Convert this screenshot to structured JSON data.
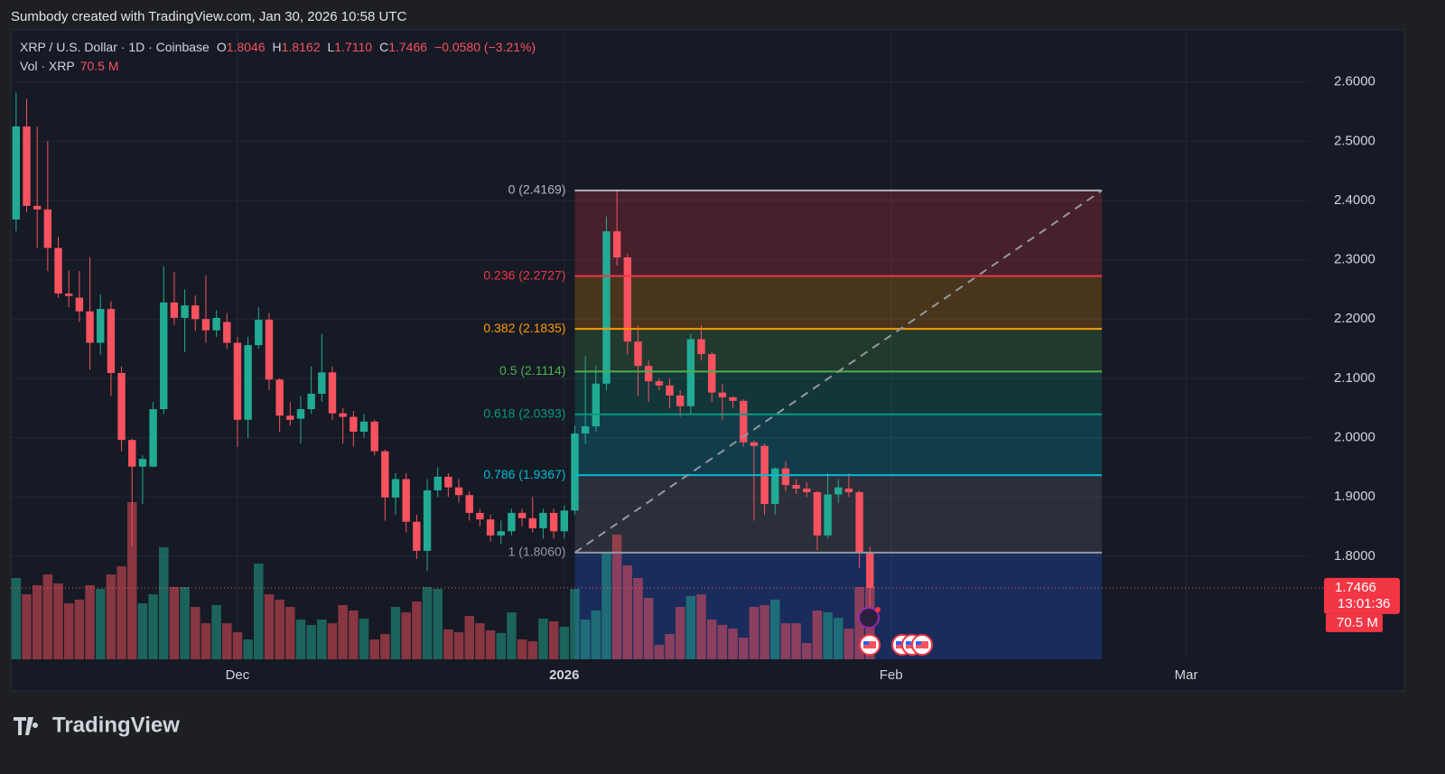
{
  "header": {
    "caption": "Sumbody created with TradingView.com, Jan 30, 2026 10:58 UTC",
    "brand": "TradingView"
  },
  "legend": {
    "symbol": "XRP / U.S. Dollar · 1D · Coinbase",
    "items": [
      {
        "key": "O",
        "value": "1.8046"
      },
      {
        "key": "H",
        "value": "1.8162"
      },
      {
        "key": "L",
        "value": "1.7110"
      },
      {
        "key": "C",
        "value": "1.7466"
      }
    ],
    "change": "−0.0580 (−3.21%)",
    "volume_title": "Vol · XRP"
  },
  "chart_data": {
    "type": "candlestick",
    "up_color": "#22ab94",
    "down_color": "#f7525f",
    "open": [
      2.368,
      2.525,
      2.391,
      2.385,
      2.32,
      2.243,
      2.236,
      2.213,
      2.16,
      2.217,
      2.109,
      1.996,
      1.951,
      1.951,
      2.048,
      2.228,
      2.202,
      2.223,
      2.2,
      2.181,
      2.195,
      2.16,
      2.03,
      2.156,
      2.199,
      2.098,
      2.037,
      2.032,
      2.048,
      2.074,
      2.11,
      2.041,
      2.035,
      2.01,
      2.027,
      1.977,
      1.899,
      1.93,
      1.858,
      1.809,
      1.911,
      1.934,
      1.916,
      1.903,
      1.873,
      1.862,
      1.835,
      1.842,
      1.873,
      1.864,
      1.847,
      1.873,
      1.842,
      1.877,
      2.007,
      2.019,
      2.091,
      2.348,
      2.304,
      2.162,
      2.121,
      2.095,
      2.088,
      2.071,
      2.053,
      2.166,
      2.141,
      2.076,
      2.068,
      2.062,
      1.992,
      1.986,
      1.888,
      1.948,
      1.92,
      1.914,
      1.908,
      1.835,
      1.904,
      1.914,
      1.908,
      1.8046
    ],
    "close": [
      2.525,
      2.391,
      2.385,
      2.32,
      2.243,
      2.239,
      2.213,
      2.16,
      2.217,
      2.109,
      1.996,
      1.951,
      1.964,
      2.048,
      2.228,
      2.202,
      2.223,
      2.2,
      2.181,
      2.202,
      2.16,
      2.03,
      2.156,
      2.199,
      2.098,
      2.037,
      2.03,
      2.048,
      2.074,
      2.11,
      2.041,
      2.035,
      2.01,
      2.027,
      1.977,
      1.899,
      1.93,
      1.858,
      1.809,
      1.911,
      1.934,
      1.916,
      1.903,
      1.873,
      1.862,
      1.835,
      1.842,
      1.873,
      1.864,
      1.847,
      1.873,
      1.842,
      1.877,
      2.007,
      2.019,
      2.091,
      2.348,
      2.304,
      2.162,
      2.121,
      2.095,
      2.088,
      2.071,
      2.053,
      2.166,
      2.141,
      2.076,
      2.068,
      2.062,
      1.992,
      1.986,
      1.888,
      1.948,
      1.92,
      1.914,
      1.908,
      1.835,
      1.904,
      1.916,
      1.908,
      1.806,
      1.7466
    ],
    "high": [
      2.582,
      2.571,
      2.525,
      2.5,
      2.339,
      2.282,
      2.281,
      2.304,
      2.242,
      2.23,
      2.12,
      1.998,
      1.97,
      2.06,
      2.289,
      2.28,
      2.25,
      2.24,
      2.274,
      2.215,
      2.21,
      2.17,
      2.17,
      2.22,
      2.21,
      2.1,
      2.06,
      2.07,
      2.12,
      2.175,
      2.12,
      2.05,
      2.045,
      2.04,
      2.03,
      1.98,
      1.94,
      1.94,
      1.87,
      1.93,
      1.95,
      1.94,
      1.93,
      1.91,
      1.88,
      1.87,
      1.86,
      1.88,
      1.88,
      1.9,
      1.88,
      1.88,
      1.885,
      2.02,
      2.137,
      2.121,
      2.373,
      2.417,
      2.31,
      2.19,
      2.13,
      2.1,
      2.1,
      2.08,
      2.175,
      2.19,
      2.145,
      2.09,
      2.07,
      2.065,
      1.995,
      1.99,
      1.95,
      1.96,
      1.93,
      1.925,
      1.91,
      1.94,
      1.93,
      1.94,
      1.911,
      1.8162
    ],
    "low": [
      2.348,
      2.38,
      2.32,
      2.281,
      2.236,
      2.22,
      2.195,
      2.114,
      2.14,
      2.07,
      1.977,
      1.817,
      1.888,
      1.95,
      2.04,
      2.19,
      2.144,
      2.18,
      2.16,
      2.17,
      2.15,
      1.984,
      1.999,
      2.15,
      2.08,
      2.01,
      2.02,
      1.99,
      2.04,
      2.06,
      2.03,
      1.99,
      1.985,
      2.0,
      1.97,
      1.86,
      1.87,
      1.84,
      1.795,
      1.775,
      1.9,
      1.9,
      1.89,
      1.86,
      1.85,
      1.825,
      1.82,
      1.835,
      1.85,
      1.84,
      1.83,
      1.83,
      1.83,
      1.87,
      1.99,
      2.01,
      2.08,
      2.29,
      2.14,
      2.07,
      2.06,
      2.08,
      2.05,
      2.035,
      2.04,
      2.13,
      2.06,
      2.03,
      2.05,
      1.985,
      1.86,
      1.87,
      1.87,
      1.91,
      1.905,
      1.9,
      1.81,
      1.83,
      1.89,
      1.9,
      1.78,
      1.711
    ],
    "volume": [
      79.3,
      63.4,
      72.3,
      82.8,
      74.0,
      54.6,
      58.2,
      72.3,
      68.7,
      82.8,
      90.8,
      153.3,
      54.6,
      63.4,
      109.3,
      70.5,
      70.5,
      51.1,
      35.2,
      52.9,
      35.2,
      26.4,
      19.4,
      93.4,
      63.4,
      58.2,
      51.1,
      38.8,
      33.5,
      38.8,
      35.2,
      52.9,
      47.6,
      39.7,
      19.4,
      24.7,
      51.1,
      45.8,
      56.4,
      70.5,
      68.7,
      29.1,
      26.4,
      42.3,
      35.2,
      28.2,
      25.6,
      45.8,
      19.4,
      17.6,
      39.7,
      37.0,
      31.7,
      68.7,
      38.8,
      47.6,
      104.0,
      121.6,
      91.6,
      79.3,
      59.9,
      14.1,
      24.7,
      51.1,
      61.7,
      63.4,
      38.8,
      33.5,
      30.0,
      21.1,
      51.1,
      52.9,
      58.2,
      35.2,
      35.2,
      15.9,
      47.6,
      45.8,
      40.5,
      30.0,
      70.5,
      70.5
    ],
    "volume_label": "70.5 M",
    "countdown": "13:01:36",
    "xlim": [
      -0.5,
      122.7
    ],
    "xticks": [
      {
        "value": 21,
        "label": "Dec"
      },
      {
        "value": 52,
        "label": "2026"
      },
      {
        "value": 83,
        "label": "Feb"
      },
      {
        "value": 111,
        "label": "Mar"
      }
    ],
    "ylim": [
      1.626,
      2.688
    ],
    "yticks": [
      {
        "value": 1.8,
        "label": "1.8000"
      },
      {
        "value": 1.9,
        "label": "1.9000"
      },
      {
        "value": 2.0,
        "label": "2.0000"
      },
      {
        "value": 2.1,
        "label": "2.1000"
      },
      {
        "value": 2.2,
        "label": "2.2000"
      },
      {
        "value": 2.3,
        "label": "2.3000"
      },
      {
        "value": 2.4,
        "label": "2.4000"
      },
      {
        "value": 2.5,
        "label": "2.5000"
      },
      {
        "value": 2.6,
        "label": "2.6000"
      }
    ],
    "grid": true,
    "fib": {
      "x_range": [
        53,
        103
      ],
      "levels": [
        {
          "value": 2.4169,
          "label": "0 (2.4169)",
          "color": "#b2b5be",
          "fill": "rgba(242,54,69,0.22)"
        },
        {
          "value": 2.2727,
          "label": "0.236 (2.2727)",
          "color": "#f23645",
          "fill": "rgba(255,152,0,0.22)"
        },
        {
          "value": 2.1835,
          "label": "0.382 (2.1835)",
          "color": "#ff9800",
          "fill": "rgba(76,175,80,0.22)"
        },
        {
          "value": 2.1114,
          "label": "0.5 (2.1114)",
          "color": "#4caf50",
          "fill": "rgba(8,153,129,0.22)"
        },
        {
          "value": 2.0393,
          "label": "0.618 (2.0393)",
          "color": "#089981",
          "fill": "rgba(0,188,212,0.22)"
        },
        {
          "value": 1.9367,
          "label": "0.786 (1.9367)",
          "color": "#00bcd4",
          "fill": "rgba(120,123,134,0.22)"
        },
        {
          "value": 1.806,
          "label": "1 (1.8060)",
          "color": "#9598a1",
          "fill": "rgba(41,98,255,0.25)"
        }
      ]
    }
  }
}
